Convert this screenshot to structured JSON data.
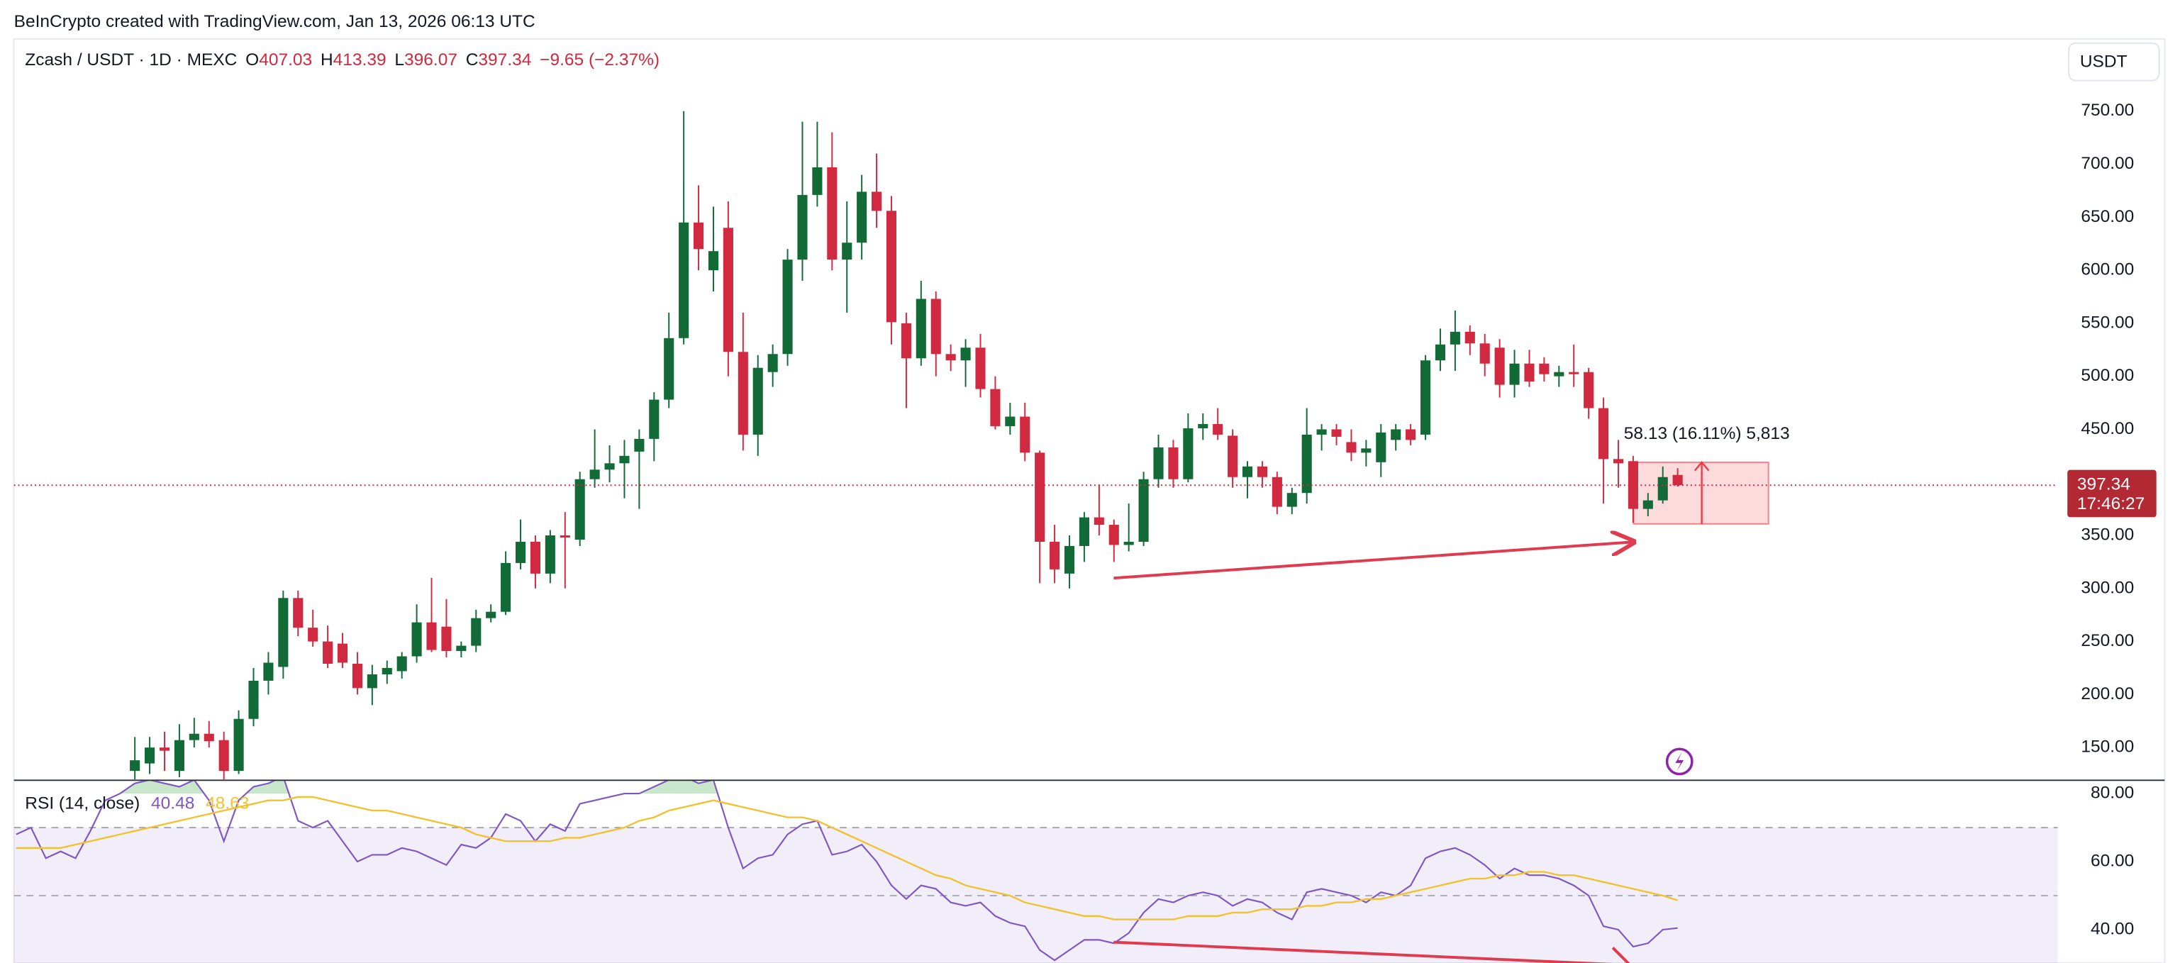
{
  "header": {
    "watermark": "BeInCrypto created with TradingView.com, Jan 13, 2026 06:13 UTC",
    "currency_button": "USDT"
  },
  "chart_data": [
    {
      "type": "candlestick",
      "title": "Zcash / USDT · 1D · MEXC",
      "ohlc_labels": [
        "O",
        "H",
        "L",
        "C"
      ],
      "change_label": "−9.65 (−2.37%)",
      "up_color": "#126b36",
      "down_color": "#d1293f",
      "open": [
        128,
        135,
        150,
        128,
        157,
        163,
        157,
        128,
        177,
        213,
        226,
        291,
        263,
        250,
        248,
        229,
        206,
        219,
        222,
        236,
        268,
        264,
        241,
        246,
        272,
        278,
        324,
        344,
        314,
        350,
        346,
        403,
        412,
        418,
        429,
        441,
        478,
        536,
        645,
        600,
        640,
        523,
        445,
        504,
        521,
        610,
        671,
        697,
        610,
        626,
        674,
        656,
        550,
        517,
        573,
        521,
        515,
        527,
        488,
        453,
        462,
        428,
        344,
        314,
        340,
        367,
        360,
        341,
        344,
        403,
        433,
        403,
        451,
        455,
        444,
        405,
        415,
        405,
        377,
        390,
        445,
        450,
        438,
        428,
        419,
        440,
        450,
        445,
        515,
        530,
        542,
        531,
        527,
        492,
        512,
        512,
        500,
        504,
        504,
        470,
        422,
        420,
        375,
        383,
        407.03
      ],
      "high": [
        160,
        160,
        165,
        172,
        178,
        175,
        165,
        185,
        225,
        240,
        298,
        298,
        280,
        265,
        258,
        240,
        228,
        232,
        240,
        285,
        310,
        290,
        250,
        280,
        285,
        335,
        365,
        350,
        355,
        372,
        410,
        450,
        435,
        440,
        450,
        485,
        560,
        750,
        680,
        660,
        665,
        560,
        520,
        530,
        620,
        740,
        740,
        730,
        665,
        690,
        710,
        670,
        560,
        590,
        580,
        530,
        535,
        540,
        500,
        475,
        475,
        430,
        360,
        350,
        372,
        398,
        365,
        380,
        410,
        445,
        440,
        465,
        465,
        470,
        450,
        420,
        420,
        410,
        395,
        470,
        455,
        455,
        450,
        440,
        455,
        455,
        455,
        520,
        545,
        562,
        548,
        540,
        535,
        525,
        525,
        518,
        510,
        530,
        508,
        480,
        440,
        425,
        390,
        415,
        413.39
      ],
      "low": [
        120,
        125,
        128,
        122,
        150,
        150,
        120,
        125,
        170,
        200,
        215,
        255,
        245,
        225,
        225,
        200,
        190,
        210,
        215,
        230,
        240,
        235,
        235,
        240,
        268,
        275,
        318,
        300,
        305,
        300,
        340,
        395,
        400,
        385,
        375,
        420,
        470,
        530,
        600,
        580,
        500,
        430,
        425,
        490,
        510,
        590,
        660,
        600,
        560,
        610,
        640,
        530,
        470,
        510,
        500,
        505,
        490,
        480,
        450,
        445,
        420,
        305,
        305,
        300,
        325,
        350,
        325,
        335,
        340,
        395,
        395,
        400,
        440,
        440,
        395,
        385,
        395,
        370,
        370,
        380,
        430,
        435,
        420,
        415,
        405,
        430,
        435,
        440,
        505,
        505,
        520,
        500,
        480,
        480,
        490,
        495,
        490,
        490,
        460,
        380,
        395,
        362,
        368,
        380,
        396.07
      ],
      "close": [
        138,
        150,
        147,
        157,
        163,
        156,
        128,
        177,
        213,
        230,
        291,
        263,
        250,
        229,
        230,
        206,
        219,
        225,
        236,
        268,
        242,
        241,
        246,
        272,
        278,
        324,
        344,
        314,
        350,
        348,
        403,
        412,
        418,
        425,
        441,
        478,
        536,
        645,
        620,
        618,
        523,
        445,
        508,
        521,
        610,
        671,
        697,
        610,
        626,
        674,
        656,
        551,
        517,
        573,
        521,
        515,
        527,
        488,
        453,
        462,
        428,
        344,
        318,
        340,
        367,
        360,
        341,
        344,
        403,
        433,
        403,
        451,
        455,
        445,
        405,
        415,
        405,
        377,
        390,
        445,
        450,
        443,
        428,
        432,
        447,
        450,
        440,
        515,
        530,
        542,
        531,
        512,
        492,
        512,
        495,
        502,
        504,
        502,
        470,
        422,
        418,
        375,
        383,
        405,
        397.34
      ],
      "countdown_label": "17:46:27",
      "measure": {
        "label": "58.13 (16.11%) 5,813",
        "range": [
          360.83,
          418.96
        ],
        "color": "#f23645"
      },
      "ylim": [
        119.8,
        818.1
      ],
      "yticks": [
        {
          "value": 150,
          "label": "150.00"
        },
        {
          "value": 200,
          "label": "200.00"
        },
        {
          "value": 250,
          "label": "250.00"
        },
        {
          "value": 300,
          "label": "300.00"
        },
        {
          "value": 350,
          "label": "350.00"
        },
        {
          "value": 400,
          "label": "400.00"
        },
        {
          "value": 450,
          "label": "450.00"
        },
        {
          "value": 500,
          "label": "500.00"
        },
        {
          "value": 550,
          "label": "550.00"
        },
        {
          "value": 600,
          "label": "600.00"
        },
        {
          "value": 650,
          "label": "650.00"
        },
        {
          "value": 700,
          "label": "700.00"
        },
        {
          "value": 750,
          "label": "750.00"
        }
      ],
      "grid": false
    },
    {
      "type": "line",
      "title": "RSI (14, close)",
      "series": [
        {
          "color": "#7e57c2",
          "values": [
            68,
            70,
            61,
            63,
            61,
            69,
            78,
            80,
            83,
            84,
            83,
            82,
            84,
            78,
            66,
            78,
            82,
            83,
            85,
            72,
            70,
            72,
            66,
            60,
            62,
            62,
            64,
            63,
            61,
            59,
            65,
            64,
            67,
            74,
            72,
            66,
            71,
            69,
            77,
            78,
            79,
            80,
            80,
            82,
            84,
            85,
            83,
            84,
            70,
            58,
            61,
            62,
            68,
            71,
            72,
            62,
            63,
            65,
            60,
            53,
            49,
            53,
            52,
            48,
            47,
            48,
            44,
            42,
            41,
            34,
            31,
            34,
            37,
            37,
            36,
            39,
            45,
            49,
            48,
            50,
            51,
            50,
            47,
            49,
            48,
            45,
            43,
            51,
            52,
            51,
            50,
            48,
            51,
            50,
            53,
            61,
            63,
            64,
            62,
            59,
            55,
            58,
            56,
            56,
            55,
            53,
            50,
            41,
            40,
            35,
            36,
            40,
            40.48
          ]
        },
        {
          "color": "#f2c12e",
          "values": [
            64,
            64,
            64,
            64,
            65,
            66,
            67,
            68,
            69,
            70,
            71,
            72,
            73,
            74,
            75,
            76,
            77,
            78,
            78,
            79,
            79,
            78,
            77,
            76,
            75,
            75,
            74,
            73,
            72,
            71,
            70,
            68,
            67,
            66,
            66,
            66,
            66,
            67,
            67,
            68,
            69,
            70,
            72,
            73,
            75,
            76,
            77,
            78,
            77,
            76,
            75,
            74,
            73,
            73,
            72,
            70,
            68,
            66,
            64,
            62,
            60,
            58,
            56,
            55,
            53,
            52,
            51,
            50,
            48,
            47,
            46,
            45,
            44,
            44,
            43,
            43,
            43,
            43,
            43,
            44,
            44,
            44,
            45,
            45,
            46,
            46,
            46,
            47,
            47,
            48,
            48,
            49,
            49,
            50,
            51,
            52,
            53,
            54,
            55,
            55,
            56,
            56,
            57,
            57,
            56,
            56,
            55,
            54,
            53,
            52,
            51,
            50,
            48.63
          ]
        }
      ],
      "bands": {
        "upper": 70,
        "middle": 50,
        "lower": 30,
        "fill": "#7e57c2"
      },
      "highlight_above": 80,
      "highlight_color": "#4caf50",
      "ylim": [
        30.2,
        83.7
      ],
      "yticks": [
        {
          "value": 40,
          "label": "40.00"
        },
        {
          "value": 60,
          "label": "60.00"
        },
        {
          "value": 80,
          "label": "80.00"
        }
      ],
      "grid": false
    }
  ]
}
